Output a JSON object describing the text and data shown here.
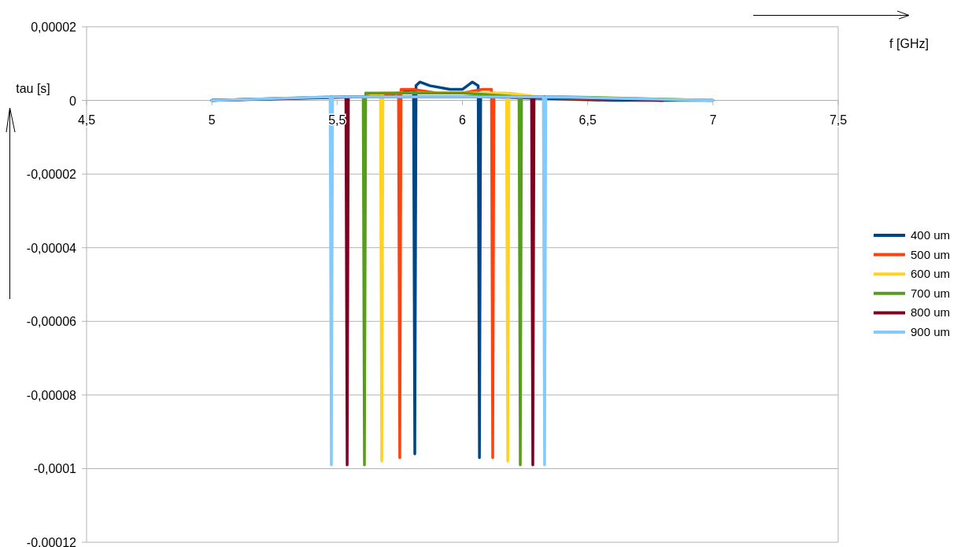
{
  "chart_data": {
    "type": "line",
    "xlabel": "f [GHz]",
    "ylabel": "tau [s]",
    "xlim": [
      4.5,
      7.5
    ],
    "ylim": [
      -0.00012,
      2e-05
    ],
    "xticks": [
      {
        "value": 4.5,
        "label": "4,5"
      },
      5,
      {
        "value": 5.5,
        "label": "5,5"
      },
      6,
      {
        "value": 6.5,
        "label": "6,5"
      },
      7,
      {
        "value": 7.5,
        "label": "7,5"
      }
    ],
    "yticks": [
      {
        "value": 2e-05,
        "label": "0,00002"
      },
      0,
      {
        "value": -2e-05,
        "label": "-0,00002"
      },
      {
        "value": -4e-05,
        "label": "-0,00004"
      },
      {
        "value": -6e-05,
        "label": "-0,00006"
      },
      {
        "value": -8e-05,
        "label": "-0,00008"
      },
      {
        "value": -0.0001,
        "label": "-0,0001"
      },
      {
        "value": -0.00012,
        "label": "-0.00012"
      }
    ],
    "grid": "y",
    "legend": "right",
    "line_style": "solid",
    "series": [
      {
        "name": "400 um",
        "color": "#004586",
        "x": [
          5.0,
          5.6,
          5.75,
          5.805,
          5.81,
          5.815,
          5.83,
          5.87,
          5.95,
          6.0,
          6.04,
          6.063,
          6.068,
          6.073,
          6.1,
          6.6,
          7.0
        ],
        "values": [
          0,
          1e-06,
          2e-06,
          3e-06,
          -9.6e-05,
          4e-06,
          5e-06,
          4e-06,
          3e-06,
          3e-06,
          5e-06,
          4e-06,
          -9.7e-05,
          2e-06,
          1e-06,
          0,
          0
        ]
      },
      {
        "name": "500 um",
        "color": "#ff420e",
        "x": [
          5.6,
          5.745,
          5.75,
          5.755,
          5.8,
          5.9,
          6.0,
          6.08,
          6.116,
          6.121,
          6.126,
          6.2,
          6.8
        ],
        "values": [
          1e-06,
          2e-06,
          -9.7e-05,
          3e-06,
          3e-06,
          2e-06,
          2e-06,
          3e-06,
          3e-06,
          -9.7e-05,
          2e-06,
          1e-06,
          0
        ]
      },
      {
        "name": "600 um",
        "color": "#ffd320",
        "x": [
          5.62,
          5.673,
          5.678,
          5.683,
          5.8,
          6.0,
          6.176,
          6.181,
          6.186,
          6.3,
          7.0
        ],
        "values": [
          1e-06,
          2e-06,
          -9.8e-05,
          2e-06,
          2e-06,
          2e-06,
          2e-06,
          -9.8e-05,
          2e-06,
          1e-06,
          0
        ]
      },
      {
        "name": "700 um",
        "color": "#579d1c",
        "x": [
          5.0,
          5.5,
          5.604,
          5.609,
          5.614,
          5.8,
          6.0,
          6.226,
          6.231,
          6.236,
          6.4,
          7.0
        ],
        "values": [
          0,
          1e-06,
          1e-06,
          -9.9e-05,
          2e-06,
          2e-06,
          2e-06,
          1e-06,
          -9.9e-05,
          1e-06,
          1e-06,
          0
        ]
      },
      {
        "name": "800 um",
        "color": "#7e0021",
        "x": [
          5.0,
          5.535,
          5.54,
          5.545,
          5.8,
          6.0,
          6.276,
          6.281,
          6.286,
          6.8
        ],
        "values": [
          0,
          1e-06,
          -9.9e-05,
          1e-06,
          1e-06,
          1e-06,
          1e-06,
          -9.9e-05,
          1e-06,
          0
        ]
      },
      {
        "name": "900 um",
        "color": "#83caff",
        "x": [
          5.0,
          5.472,
          5.477,
          5.482,
          5.8,
          6.0,
          6.323,
          6.328,
          6.333,
          7.0
        ],
        "values": [
          0,
          1e-06,
          -9.9e-05,
          1e-06,
          1e-06,
          1e-06,
          1e-06,
          -9.9e-05,
          1e-06,
          0
        ]
      }
    ]
  }
}
